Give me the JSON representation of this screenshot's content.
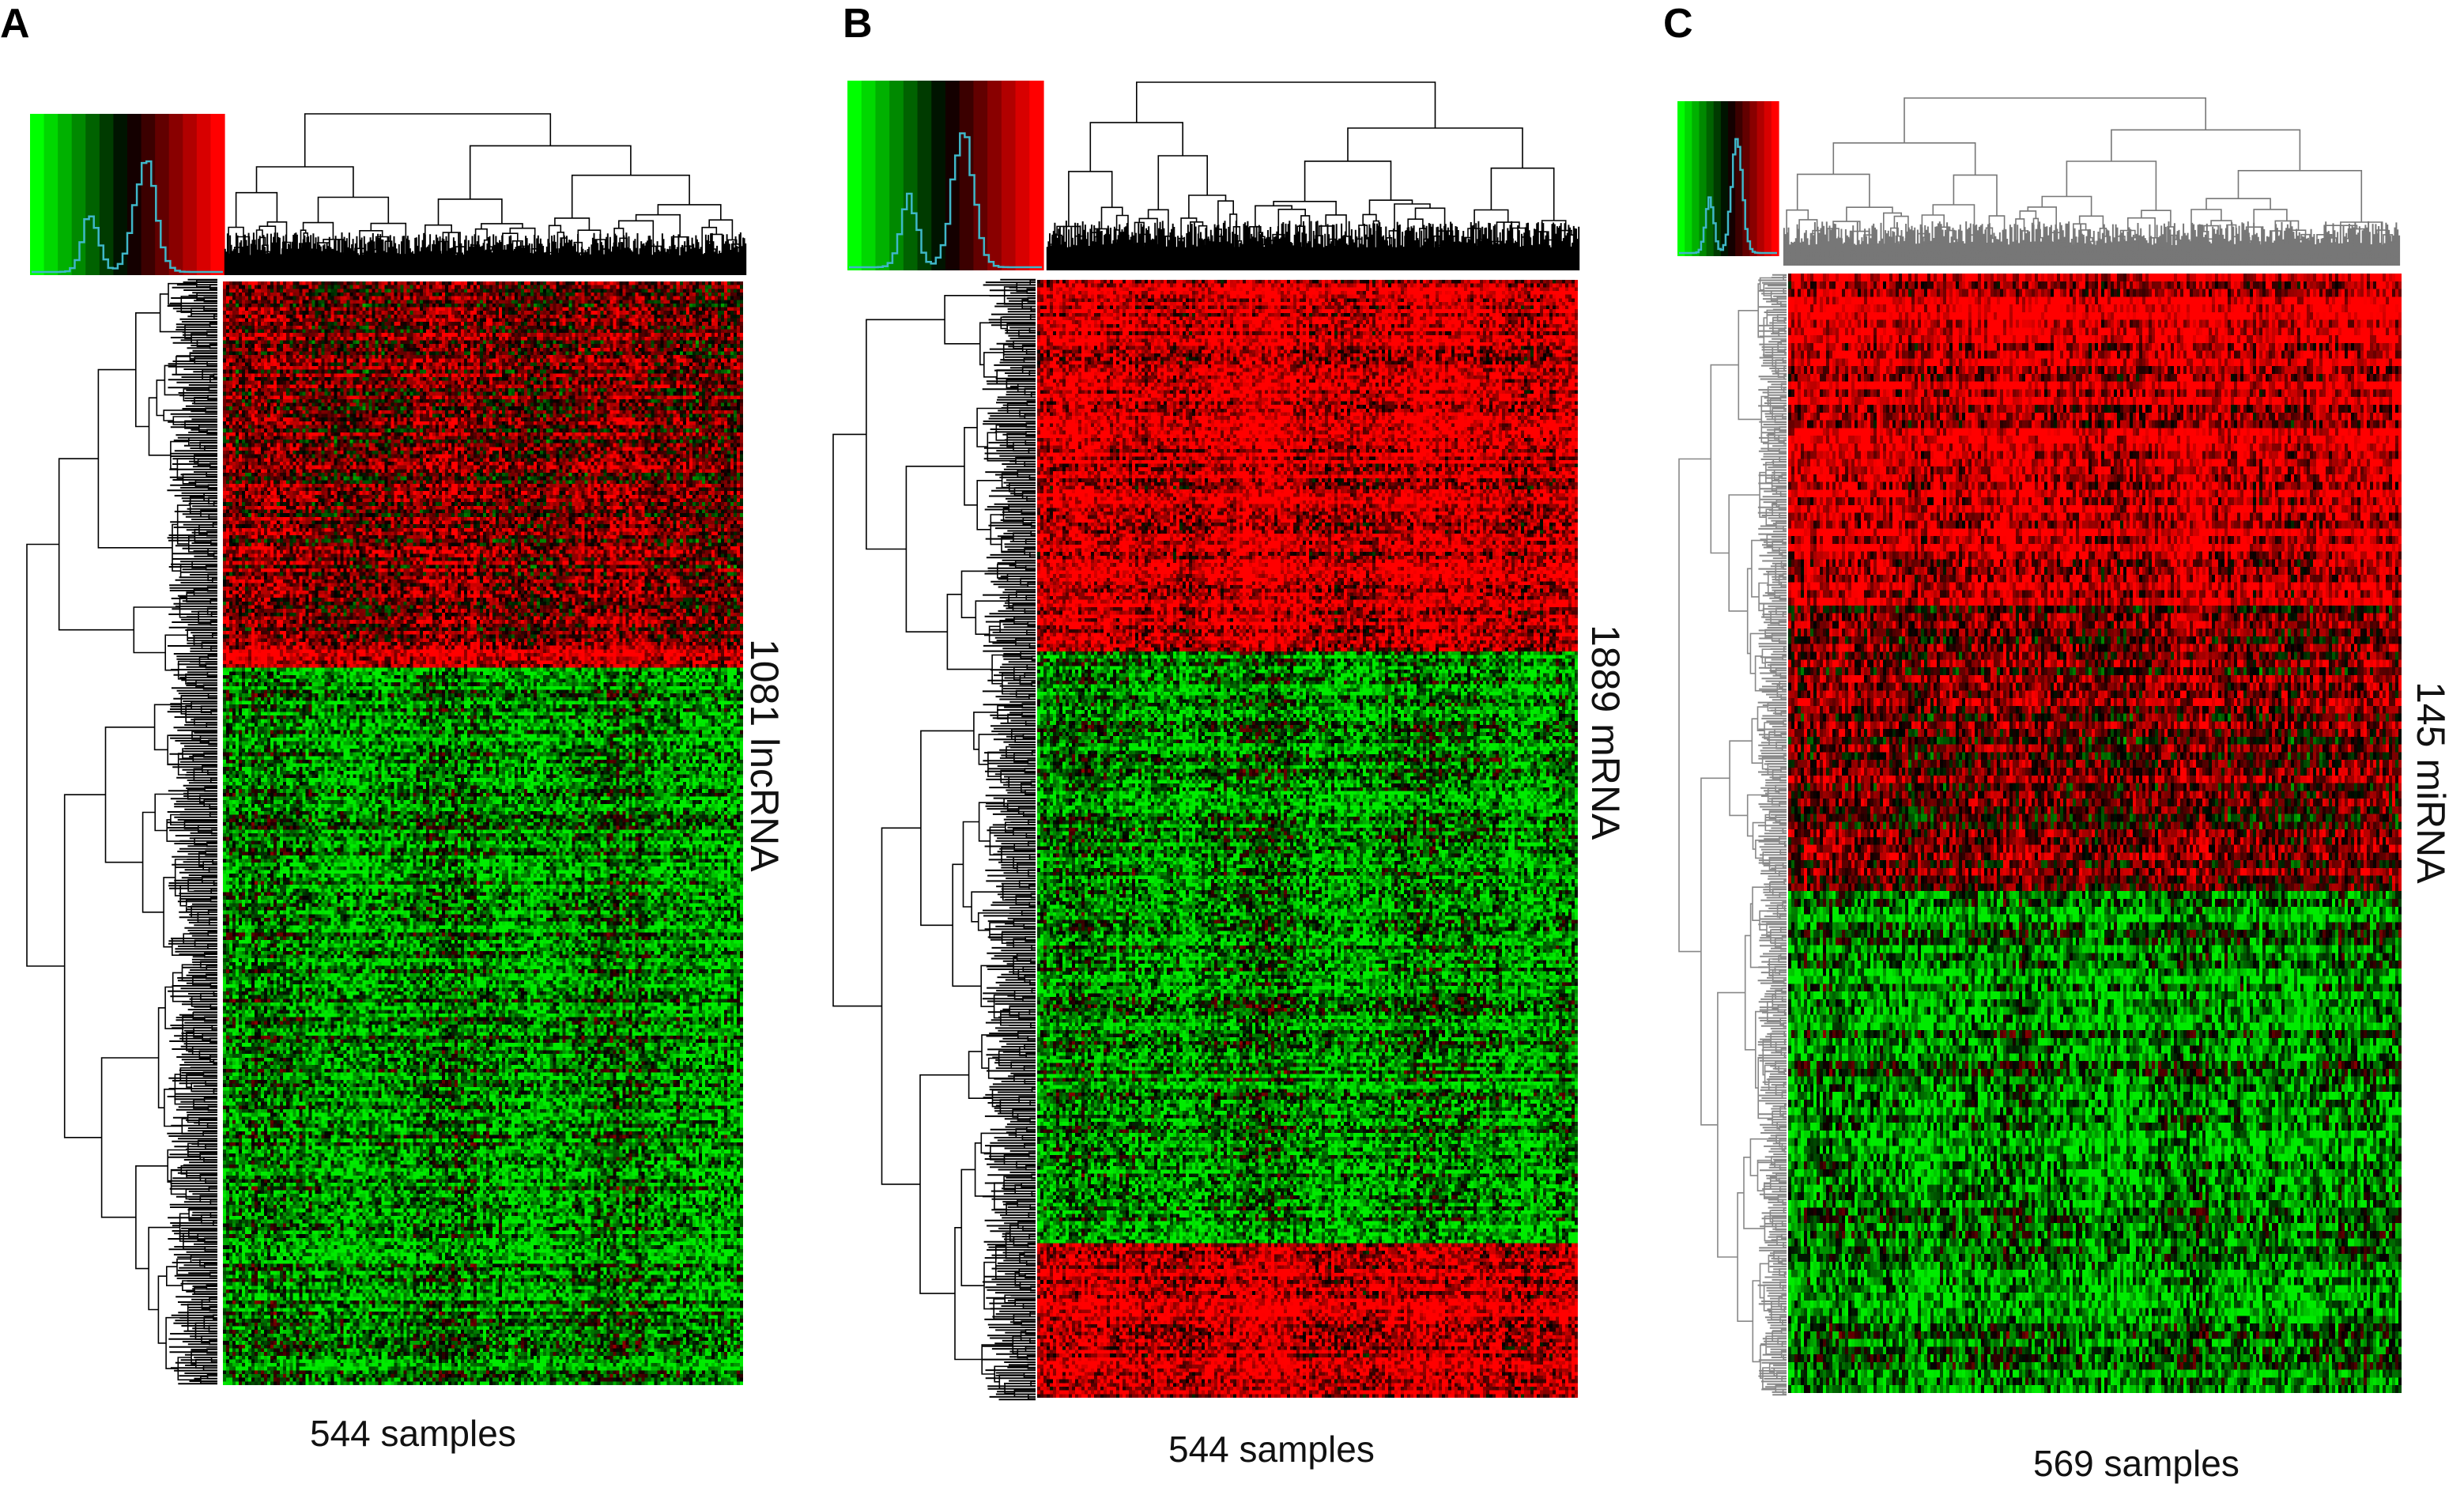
{
  "colors": {
    "low": "#00ff00",
    "mid": "#000000",
    "high": "#ff0000",
    "hist": "#3fb7c9"
  },
  "chart_data": [
    {
      "panel": "A",
      "type": "heatmap",
      "title": "",
      "rows_label": "1081 lncRNA",
      "cols_label": "544 samples",
      "n_rows": 1081,
      "n_cols": 544,
      "color_key": "green-black-red",
      "row_bands": [
        {
          "from": 0.0,
          "to": 0.33,
          "tone": "mixed-red"
        },
        {
          "from": 0.33,
          "to": 0.35,
          "tone": "red"
        },
        {
          "from": 0.35,
          "to": 1.0,
          "tone": "green"
        }
      ]
    },
    {
      "panel": "B",
      "type": "heatmap",
      "title": "",
      "rows_label": "1889 mRNA",
      "cols_label": "544 samples",
      "n_rows": 1889,
      "n_cols": 544,
      "color_key": "green-black-red",
      "row_bands": [
        {
          "from": 0.0,
          "to": 0.33,
          "tone": "red"
        },
        {
          "from": 0.33,
          "to": 0.86,
          "tone": "green"
        },
        {
          "from": 0.86,
          "to": 1.0,
          "tone": "red"
        }
      ]
    },
    {
      "panel": "C",
      "type": "heatmap",
      "title": "",
      "rows_label": "145 miRNA",
      "cols_label": "569 samples",
      "n_rows": 145,
      "n_cols": 569,
      "color_key": "green-black-red",
      "row_bands": [
        {
          "from": 0.0,
          "to": 0.29,
          "tone": "red"
        },
        {
          "from": 0.29,
          "to": 0.55,
          "tone": "mixed-red"
        },
        {
          "from": 0.55,
          "to": 1.0,
          "tone": "green"
        }
      ]
    }
  ]
}
